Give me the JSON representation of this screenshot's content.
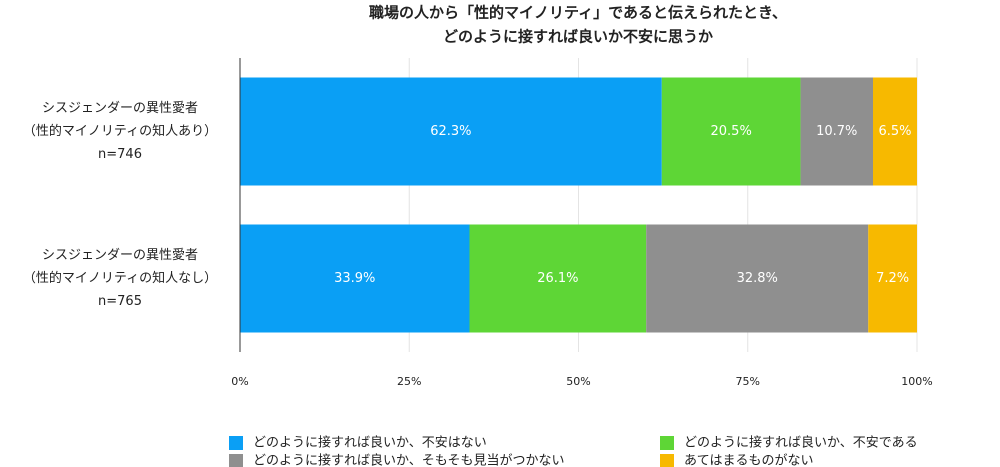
{
  "chart_data": {
    "type": "stacked-bar-horizontal",
    "title": [
      "職場の人から「性的マイノリティ」であると伝えられたとき、",
      "どのように接すれば良いか不安に思うか"
    ],
    "categories": [
      [
        "シスジェンダーの異性愛者",
        "（性的マイノリティの知人あり）",
        "n=746"
      ],
      [
        "シスジェンダーの異性愛者",
        "（性的マイノリティの知人なし）",
        "n=765"
      ]
    ],
    "series": [
      {
        "name": "どのように接すれば良いか、不安はない",
        "color": "#0a9ff5",
        "values": [
          62.3,
          33.9
        ],
        "value_labels": [
          "62.3%",
          "33.9%"
        ]
      },
      {
        "name": "どのように接すれば良いか、不安である",
        "color": "#5ed636",
        "values": [
          20.5,
          26.1
        ],
        "value_labels": [
          "20.5%",
          "26.1%"
        ]
      },
      {
        "name": "どのように接すれば良いか、そもそも見当がつかない",
        "color": "#8f8f8f",
        "values": [
          10.7,
          32.8
        ],
        "value_labels": [
          "10.7%",
          "32.8%"
        ]
      },
      {
        "name": "あてはまるものがない",
        "color": "#f7b900",
        "values": [
          6.5,
          7.2
        ],
        "value_labels": [
          "6.5%",
          "7.2%"
        ]
      }
    ],
    "xlim": [
      0,
      100
    ],
    "xticks": [
      {
        "value": 0,
        "label": "0%"
      },
      {
        "value": 25,
        "label": "25%"
      },
      {
        "value": 50,
        "label": "50%"
      },
      {
        "value": 75,
        "label": "75%"
      },
      {
        "value": 100,
        "label": "100%"
      }
    ],
    "grid": true
  }
}
